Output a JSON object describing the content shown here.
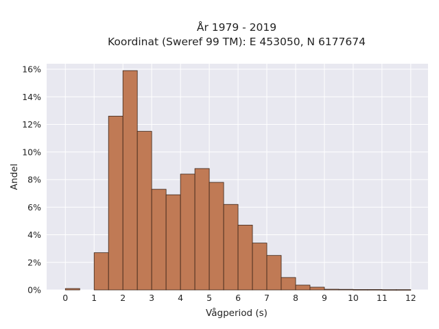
{
  "chart_data": {
    "type": "bar",
    "title_line1": "År 1979 - 2019",
    "title_line2": "Koordinat (Sweref 99 TM): E 453050, N 6177674",
    "xlabel": "Vågperiod (s)",
    "ylabel": "Andel",
    "xlim": [
      -0.65,
      12.6
    ],
    "ylim": [
      0,
      16.4
    ],
    "x_ticks": [
      "0",
      "1",
      "2",
      "3",
      "4",
      "5",
      "6",
      "7",
      "8",
      "9",
      "10",
      "11",
      "12"
    ],
    "y_ticks": [
      "0%",
      "2%",
      "4%",
      "6%",
      "8%",
      "10%",
      "12%",
      "14%",
      "16%"
    ],
    "bin_width": 0.5,
    "bins": [
      {
        "start": 0.0,
        "value": 0.1
      },
      {
        "start": 0.5,
        "value": 0.0
      },
      {
        "start": 1.0,
        "value": 2.7
      },
      {
        "start": 1.5,
        "value": 12.6
      },
      {
        "start": 2.0,
        "value": 15.9
      },
      {
        "start": 2.5,
        "value": 11.5
      },
      {
        "start": 3.0,
        "value": 7.3
      },
      {
        "start": 3.5,
        "value": 6.9
      },
      {
        "start": 4.0,
        "value": 8.4
      },
      {
        "start": 4.5,
        "value": 8.8
      },
      {
        "start": 5.0,
        "value": 7.8
      },
      {
        "start": 5.5,
        "value": 6.2
      },
      {
        "start": 6.0,
        "value": 4.7
      },
      {
        "start": 6.5,
        "value": 3.4
      },
      {
        "start": 7.0,
        "value": 2.5
      },
      {
        "start": 7.5,
        "value": 0.9
      },
      {
        "start": 8.0,
        "value": 0.35
      },
      {
        "start": 8.5,
        "value": 0.2
      },
      {
        "start": 9.0,
        "value": 0.05
      },
      {
        "start": 9.5,
        "value": 0.04
      },
      {
        "start": 10.0,
        "value": 0.03
      },
      {
        "start": 10.5,
        "value": 0.03
      },
      {
        "start": 11.0,
        "value": 0.02
      },
      {
        "start": 11.5,
        "value": 0.02
      }
    ],
    "grid": true,
    "colors": {
      "bar_fill": "#c07a55",
      "bar_edge": "#3a2418",
      "plot_bg": "#e8e8f0",
      "grid": "#ffffff"
    }
  }
}
